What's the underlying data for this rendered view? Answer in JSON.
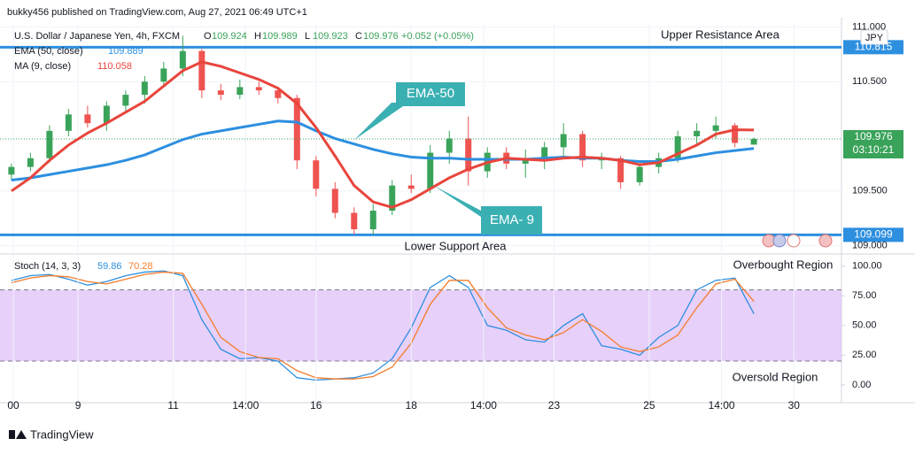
{
  "chart_data": {
    "type": "candlestick",
    "publisher": "bukky456 published on TradingView.com, Aug 27, 2021 06:49 UTC+1",
    "title": "U.S. Dollar / Japanese Yen, 4h, FXCM",
    "change": "+0.052 (+0.05%)",
    "currency": "JPY",
    "countdown": "03:10:21",
    "brand": "TradingView",
    "annotations": {
      "resistance": "Upper Resistance Area",
      "support": "Lower Support Area",
      "ema50": "EMA-50",
      "ma9": "EMA- 9",
      "overbought": "Overbought Region",
      "oversold": "Oversold Region"
    },
    "ylim": [
      108.94,
      111.02
    ],
    "yticks": [
      {
        "value": 109.0,
        "label": "109.000"
      },
      {
        "value": 109.5,
        "label": "109.500"
      },
      {
        "value": 110.5,
        "label": "110.500"
      },
      {
        "value": 111.0,
        "label": "111.000"
      }
    ],
    "xlim": [
      -0.6,
      43.6
    ],
    "xticks": [
      {
        "value": 0.1,
        "label": "00"
      },
      {
        "value": 3.5,
        "label": "9"
      },
      {
        "value": 8.5,
        "label": "11"
      },
      {
        "value": 12.3,
        "label": "14:00"
      },
      {
        "value": 16.0,
        "label": "16"
      },
      {
        "value": 21.0,
        "label": "18"
      },
      {
        "value": 24.8,
        "label": "14:00"
      },
      {
        "value": 28.5,
        "label": "23"
      },
      {
        "value": 33.5,
        "label": "25"
      },
      {
        "value": 37.3,
        "label": "14:00"
      },
      {
        "value": 41.1,
        "label": "30"
      }
    ],
    "up_color": "#3aa35a",
    "down_color": "#ef5350",
    "open": [
      109.65,
      109.72,
      109.8,
      110.05,
      110.2,
      110.12,
      110.28,
      110.38,
      110.5,
      110.62,
      110.78,
      110.42,
      110.38,
      110.45,
      110.42,
      110.35,
      109.78,
      109.52,
      109.3,
      109.15,
      109.32,
      109.55,
      109.52,
      109.85,
      109.98,
      109.68,
      109.85,
      109.75,
      109.8,
      109.9,
      110.02,
      109.78,
      109.8,
      109.58,
      109.72,
      109.8,
      110.0,
      110.05,
      110.1,
      109.924
    ],
    "high": [
      109.75,
      109.85,
      110.1,
      110.25,
      110.28,
      110.32,
      110.42,
      110.55,
      110.68,
      110.92,
      110.8,
      110.48,
      110.52,
      110.5,
      110.45,
      110.38,
      109.82,
      109.58,
      109.35,
      109.38,
      109.6,
      109.65,
      109.92,
      110.05,
      110.18,
      109.9,
      109.9,
      109.88,
      109.95,
      110.12,
      110.05,
      109.85,
      109.82,
      109.78,
      109.85,
      110.05,
      110.12,
      110.18,
      110.12,
      109.989
    ],
    "low": [
      109.6,
      109.68,
      109.76,
      110.0,
      110.08,
      110.05,
      110.22,
      110.3,
      110.45,
      110.55,
      110.35,
      110.33,
      110.34,
      110.38,
      110.3,
      109.7,
      109.45,
      109.25,
      109.1,
      109.1,
      109.28,
      109.48,
      109.48,
      109.75,
      109.55,
      109.62,
      109.7,
      109.62,
      109.7,
      109.82,
      109.72,
      109.7,
      109.52,
      109.55,
      109.66,
      109.76,
      109.92,
      109.98,
      109.9,
      109.923
    ],
    "close": [
      109.72,
      109.8,
      110.05,
      110.2,
      110.12,
      110.28,
      110.38,
      110.5,
      110.62,
      110.78,
      110.42,
      110.38,
      110.45,
      110.42,
      110.35,
      109.78,
      109.52,
      109.3,
      109.15,
      109.32,
      109.55,
      109.52,
      109.85,
      109.98,
      109.68,
      109.85,
      109.75,
      109.8,
      109.9,
      110.02,
      109.78,
      109.8,
      109.58,
      109.72,
      109.8,
      110.0,
      110.05,
      110.1,
      109.94,
      109.976
    ],
    "lines": [
      {
        "name": "EMA (50, close)",
        "color": "#2d8fe0",
        "values": [
          109.6,
          109.62,
          109.65,
          109.68,
          109.71,
          109.74,
          109.78,
          109.83,
          109.9,
          109.97,
          110.02,
          110.05,
          110.08,
          110.11,
          110.14,
          110.13,
          110.05,
          109.98,
          109.93,
          109.88,
          109.84,
          109.81,
          109.8,
          109.8,
          109.79,
          109.79,
          109.79,
          109.79,
          109.8,
          109.81,
          109.8,
          109.8,
          109.78,
          109.77,
          109.77,
          109.79,
          109.82,
          109.85,
          109.87,
          109.889
        ]
      },
      {
        "name": "MA (9, close)",
        "color": "#e8453c",
        "values": [
          109.5,
          109.62,
          109.78,
          109.92,
          110.03,
          110.12,
          110.22,
          110.32,
          110.46,
          110.6,
          110.68,
          110.64,
          110.58,
          110.52,
          110.44,
          110.3,
          110.08,
          109.82,
          109.55,
          109.4,
          109.35,
          109.42,
          109.52,
          109.62,
          109.7,
          109.76,
          109.8,
          109.79,
          109.78,
          109.8,
          109.81,
          109.8,
          109.78,
          109.74,
          109.76,
          109.84,
          109.92,
          110.02,
          110.06,
          110.058
        ]
      }
    ],
    "levels": [
      {
        "value": 110.815,
        "color": "#2d8fe0"
      },
      {
        "value": 109.099,
        "color": "#2d8fe0"
      }
    ],
    "stoch": {
      "name": "Stoch (14, 3, 3)",
      "ylim": [
        -15,
        108
      ],
      "yticks": [
        {
          "value": 0,
          "label": "0.00"
        },
        {
          "value": 25,
          "label": "25.00"
        },
        {
          "value": 50,
          "label": "50.00"
        },
        {
          "value": 75,
          "label": "75.00"
        },
        {
          "value": 100,
          "label": "100.00"
        }
      ],
      "bands": [
        20,
        80
      ],
      "band_color": "#e1c4f7",
      "series": [
        {
          "color": "#2d8fe0",
          "values": [
            88,
            92,
            93,
            89,
            84,
            87,
            92,
            95,
            96,
            92,
            55,
            30,
            22,
            23,
            20,
            6,
            4,
            5,
            6,
            10,
            22,
            48,
            82,
            92,
            82,
            50,
            46,
            38,
            36,
            50,
            60,
            33,
            30,
            25,
            40,
            50,
            80,
            88,
            90,
            59.86
          ]
        },
        {
          "color": "#f57c2b",
          "values": [
            86,
            90,
            92,
            91,
            87,
            85,
            89,
            93,
            95,
            94,
            68,
            40,
            28,
            23,
            22,
            12,
            6,
            5,
            5,
            7,
            15,
            35,
            68,
            88,
            88,
            65,
            48,
            42,
            38,
            44,
            55,
            45,
            32,
            28,
            32,
            42,
            65,
            85,
            89,
            70.28
          ]
        }
      ]
    }
  }
}
